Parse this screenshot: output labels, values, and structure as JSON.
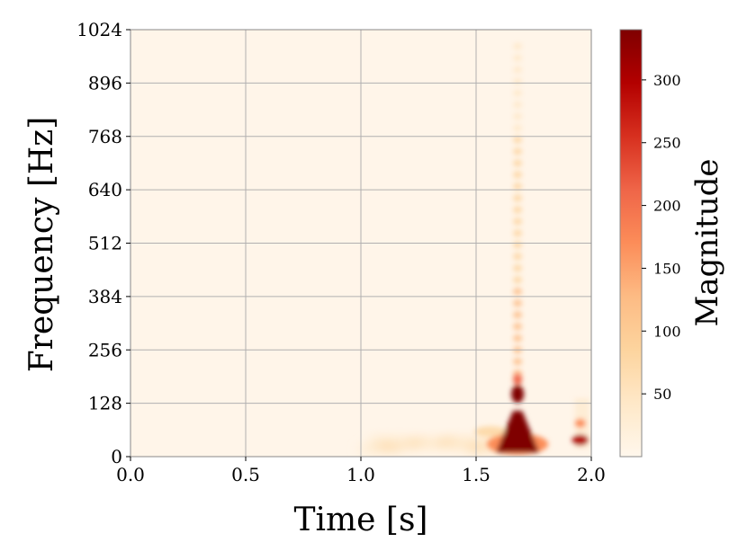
{
  "chart_data": {
    "type": "heatmap",
    "title": "",
    "xlabel": "Time [s]",
    "ylabel": "Frequency [Hz]",
    "xlim": [
      0.0,
      2.0
    ],
    "ylim": [
      0,
      1024
    ],
    "x_ticks": [
      "0.0",
      "0.5",
      "1.0",
      "1.5",
      "2.0"
    ],
    "x_tick_values": [
      0.0,
      0.5,
      1.0,
      1.5,
      2.0
    ],
    "y_ticks": [
      "0",
      "128",
      "256",
      "384",
      "512",
      "640",
      "768",
      "896",
      "1024"
    ],
    "y_tick_values": [
      0,
      128,
      256,
      384,
      512,
      640,
      768,
      896,
      1024
    ],
    "grid": true,
    "colormap": "OrRd",
    "colors": [
      "#fff7ec",
      "#fee8c8",
      "#fdd49e",
      "#fdbb84",
      "#fc8d59",
      "#ef6548",
      "#d7301f",
      "#b30000",
      "#7f0000"
    ],
    "colorbar": {
      "label": "Magnitude",
      "range": [
        0,
        340
      ],
      "ticks": [
        "50",
        "100",
        "150",
        "200",
        "250",
        "300"
      ],
      "tick_values": [
        50,
        100,
        150,
        200,
        250,
        300
      ]
    },
    "hotspots": [
      {
        "name": "main-burst",
        "time": 1.68,
        "freq": 40,
        "magnitude": 340,
        "time_width": 0.1,
        "freq_span": [
          10,
          200
        ]
      },
      {
        "name": "harmonic-streak",
        "time": 1.68,
        "freq_span": [
          200,
          1000
        ],
        "magnitude": 60
      },
      {
        "name": "secondary-burst",
        "time": 1.96,
        "freq": 40,
        "magnitude": 300
      },
      {
        "name": "low-band-noise",
        "time_span": [
          1.05,
          1.6
        ],
        "freq_span": [
          0,
          60
        ],
        "magnitude": 40
      }
    ]
  }
}
